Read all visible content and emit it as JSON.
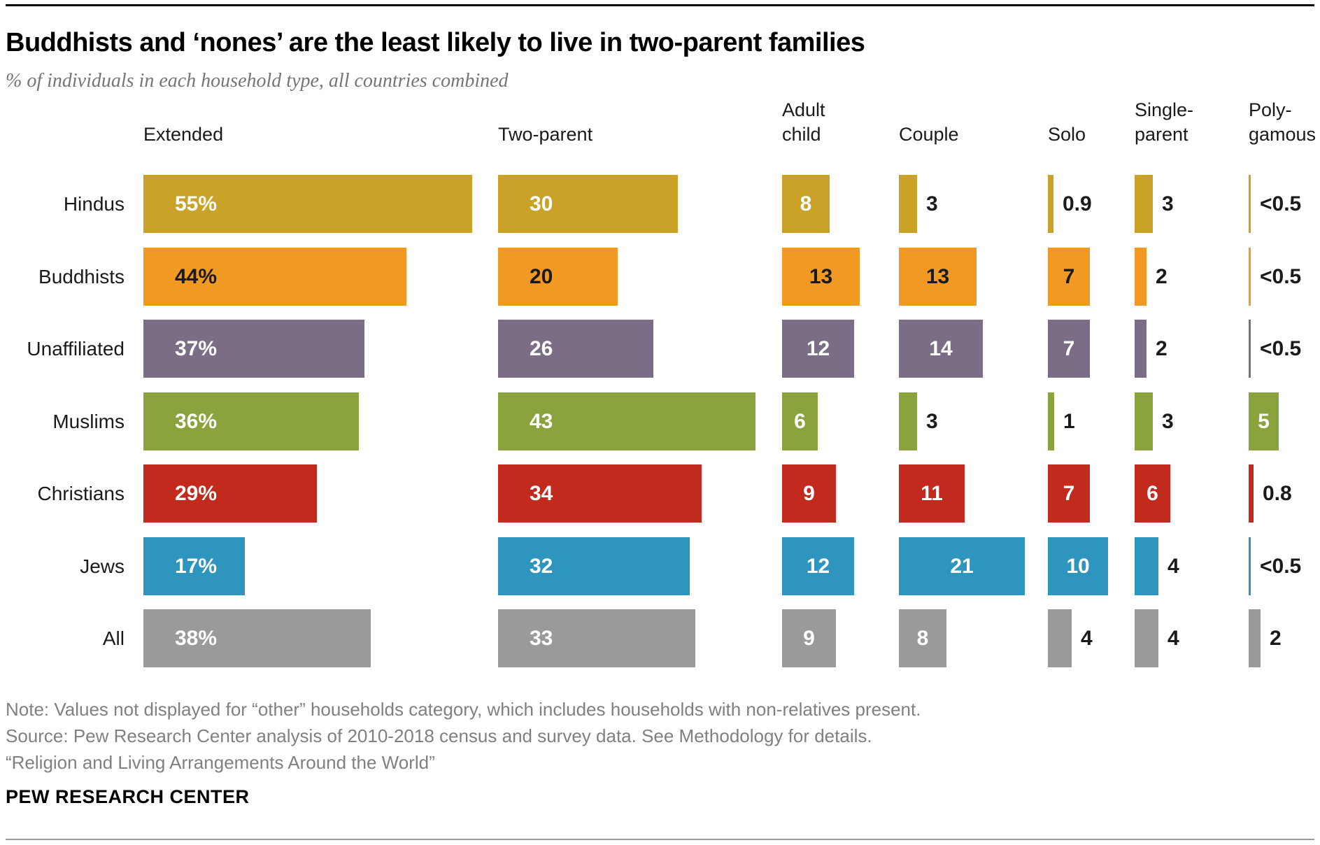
{
  "page": {
    "title": "Buddhists and ‘nones’ are the least likely to live in two-parent families",
    "subtitle": "% of individuals in each household type, all countries combined",
    "notes": [
      "Note: Values not displayed for “other” households category, which includes households with non-relatives present.",
      "Source: Pew Research Center analysis of 2010-2018 census and survey data. See Methodology for details.",
      "“Religion and Living Arrangements Around the World”"
    ],
    "brand": "PEW RESEARCH CENTER"
  },
  "chart_data": {
    "type": "bar",
    "title": "Buddhists and ‘nones’ are the least likely to live in two-parent families",
    "subtitle": "% of individuals in each household type, all countries combined",
    "legend_position": "column-headers-top",
    "grid": false,
    "xlim_per_column_pct": [
      0,
      57
    ],
    "columns": [
      {
        "id": "extended",
        "label": "Extended",
        "label_lines": [
          "Extended"
        ]
      },
      {
        "id": "two_parent",
        "label": "Two-parent",
        "label_lines": [
          "Two-parent"
        ]
      },
      {
        "id": "adult_child",
        "label": "Adult child",
        "label_lines": [
          "Adult",
          "child"
        ]
      },
      {
        "id": "couple",
        "label": "Couple",
        "label_lines": [
          "Couple"
        ]
      },
      {
        "id": "solo",
        "label": "Solo",
        "label_lines": [
          "Solo"
        ]
      },
      {
        "id": "single_parent",
        "label": "Single-parent",
        "label_lines": [
          "Single-",
          "parent"
        ]
      },
      {
        "id": "polygamous",
        "label": "Poly-gamous",
        "label_lines": [
          "Poly-",
          "gamous"
        ]
      }
    ],
    "rows": [
      {
        "label": "Hindus",
        "color": "#C9A227",
        "in_bar_text_color": "#FFFFFF",
        "values": [
          {
            "display": "55%",
            "value": 55
          },
          {
            "display": "30",
            "value": 30
          },
          {
            "display": "8",
            "value": 8
          },
          {
            "display": "3",
            "value": 3
          },
          {
            "display": "0.9",
            "value": 0.9
          },
          {
            "display": "3",
            "value": 3
          },
          {
            "display": "<0.5",
            "value": 0.4
          }
        ]
      },
      {
        "label": "Buddhists",
        "color": "#F09A23",
        "in_bar_text_color": "#1A1A1A",
        "values": [
          {
            "display": "44%",
            "value": 44
          },
          {
            "display": "20",
            "value": 20
          },
          {
            "display": "13",
            "value": 13
          },
          {
            "display": "13",
            "value": 13
          },
          {
            "display": "7",
            "value": 7
          },
          {
            "display": "2",
            "value": 2
          },
          {
            "display": "<0.5",
            "value": 0.4
          }
        ]
      },
      {
        "label": "Unaffiliated",
        "color": "#7A6D85",
        "in_bar_text_color": "#FFFFFF",
        "values": [
          {
            "display": "37%",
            "value": 37
          },
          {
            "display": "26",
            "value": 26
          },
          {
            "display": "12",
            "value": 12
          },
          {
            "display": "14",
            "value": 14
          },
          {
            "display": "7",
            "value": 7
          },
          {
            "display": "2",
            "value": 2
          },
          {
            "display": "<0.5",
            "value": 0.4
          }
        ]
      },
      {
        "label": "Muslims",
        "color": "#8BA33C",
        "in_bar_text_color": "#FFFFFF",
        "values": [
          {
            "display": "36%",
            "value": 36
          },
          {
            "display": "43",
            "value": 43
          },
          {
            "display": "6",
            "value": 6
          },
          {
            "display": "3",
            "value": 3
          },
          {
            "display": "1",
            "value": 1
          },
          {
            "display": "3",
            "value": 3
          },
          {
            "display": "5",
            "value": 5
          }
        ]
      },
      {
        "label": "Christians",
        "color": "#C32A1E",
        "in_bar_text_color": "#FFFFFF",
        "values": [
          {
            "display": "29%",
            "value": 29
          },
          {
            "display": "34",
            "value": 34
          },
          {
            "display": "9",
            "value": 9
          },
          {
            "display": "11",
            "value": 11
          },
          {
            "display": "7",
            "value": 7
          },
          {
            "display": "6",
            "value": 6
          },
          {
            "display": "0.8",
            "value": 0.8
          }
        ]
      },
      {
        "label": "Jews",
        "color": "#2E95BF",
        "in_bar_text_color": "#FFFFFF",
        "values": [
          {
            "display": "17%",
            "value": 17
          },
          {
            "display": "32",
            "value": 32
          },
          {
            "display": "12",
            "value": 12
          },
          {
            "display": "21",
            "value": 21
          },
          {
            "display": "10",
            "value": 10
          },
          {
            "display": "4",
            "value": 4
          },
          {
            "display": "<0.5",
            "value": 0.4
          }
        ]
      },
      {
        "label": "All",
        "color": "#9A9A9A",
        "in_bar_text_color": "#FFFFFF",
        "values": [
          {
            "display": "38%",
            "value": 38
          },
          {
            "display": "33",
            "value": 33
          },
          {
            "display": "9",
            "value": 9
          },
          {
            "display": "8",
            "value": 8
          },
          {
            "display": "4",
            "value": 4
          },
          {
            "display": "4",
            "value": 4
          },
          {
            "display": "2",
            "value": 2
          }
        ]
      }
    ]
  }
}
